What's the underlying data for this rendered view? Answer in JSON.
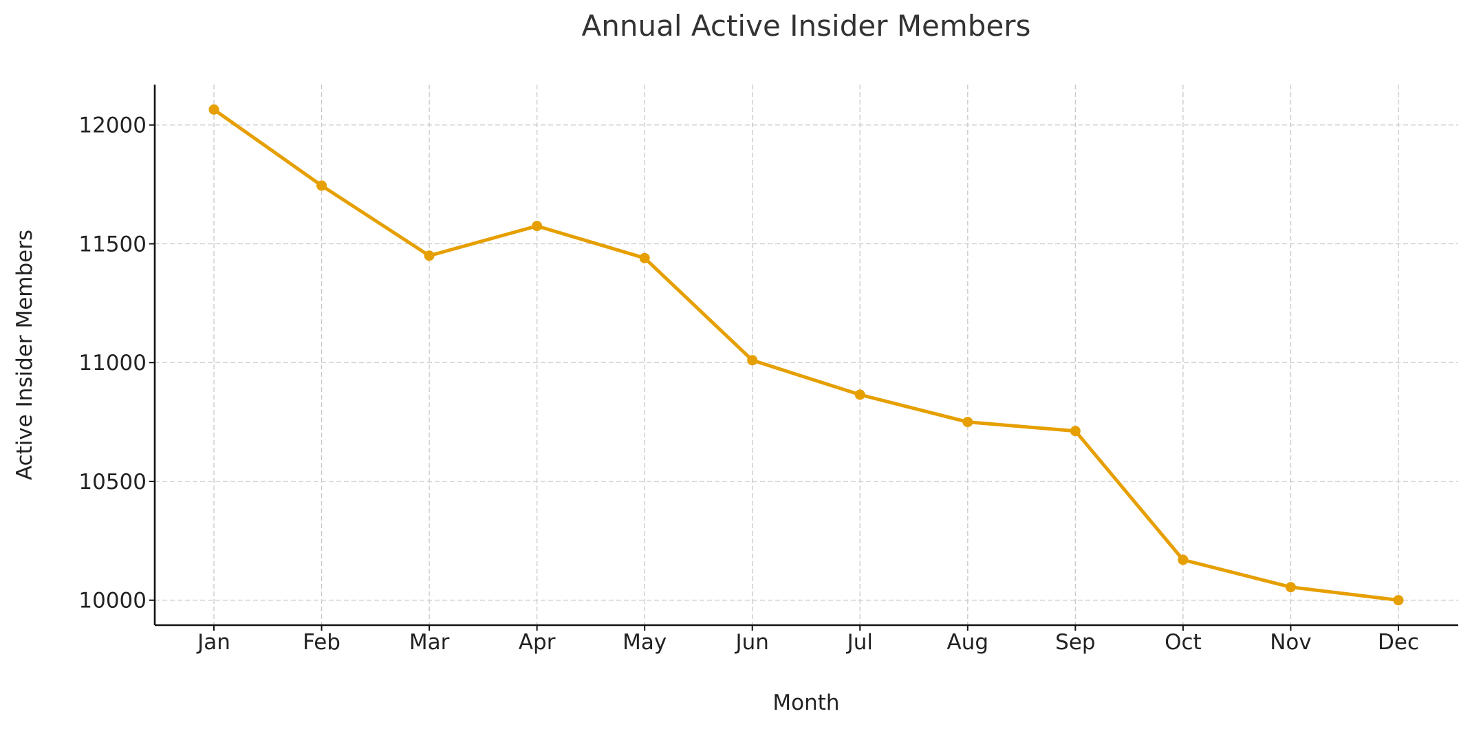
{
  "chart_data": {
    "type": "line",
    "title": "Annual Active Insider Members",
    "xlabel": "Month",
    "ylabel": "Active Insider Members",
    "categories": [
      "Jan",
      "Feb",
      "Mar",
      "Apr",
      "May",
      "Jun",
      "Jul",
      "Aug",
      "Sep",
      "Oct",
      "Nov",
      "Dec"
    ],
    "series": [
      {
        "values": [
          12065,
          11745,
          11450,
          11575,
          11440,
          11010,
          10865,
          10750,
          10712,
          10170,
          10055,
          10000
        ],
        "color": "#E69F00",
        "marker": "circle"
      }
    ],
    "y_ticks": [
      10000,
      10500,
      11000,
      11500,
      12000
    ],
    "ylim": [
      9895,
      12170
    ],
    "grid": true,
    "legend": "none"
  }
}
